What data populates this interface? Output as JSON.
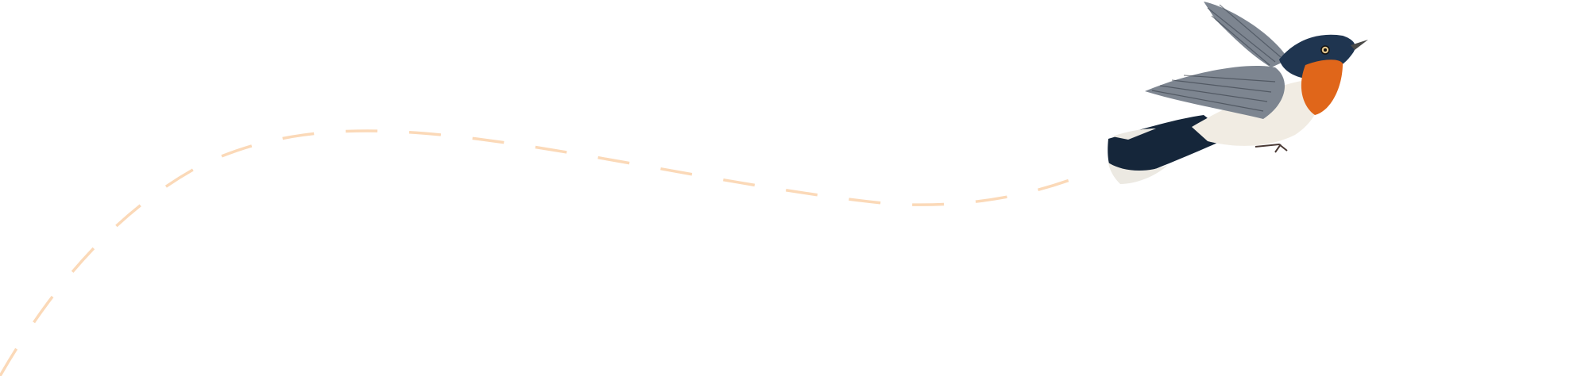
{
  "illustration": {
    "subject": "bird-in-flight",
    "flight_path_style": "dashed",
    "colors": {
      "background": "#ffffff",
      "flight_path": "#fbd9b8",
      "bird_throat": "#e0661a",
      "bird_head": "#1f3550",
      "bird_belly": "#f1ece3",
      "bird_wing": "#7d8590",
      "bird_tail": "#15263a"
    }
  }
}
